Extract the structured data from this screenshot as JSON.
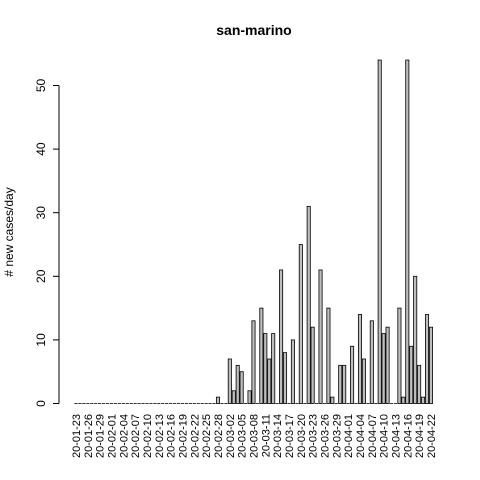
{
  "chart_data": {
    "type": "bar",
    "title": "san-marino",
    "xlabel": "",
    "ylabel": "# new cases/day",
    "ylim": [
      0,
      55
    ],
    "yticks": [
      0,
      10,
      20,
      30,
      40,
      50
    ],
    "dates": [
      "20-01-23",
      "20-01-24",
      "20-01-25",
      "20-01-26",
      "20-01-27",
      "20-01-28",
      "20-01-29",
      "20-01-30",
      "20-01-31",
      "20-02-01",
      "20-02-02",
      "20-02-03",
      "20-02-04",
      "20-02-05",
      "20-02-06",
      "20-02-07",
      "20-02-08",
      "20-02-09",
      "20-02-10",
      "20-02-11",
      "20-02-12",
      "20-02-13",
      "20-02-14",
      "20-02-15",
      "20-02-16",
      "20-02-17",
      "20-02-18",
      "20-02-19",
      "20-02-20",
      "20-02-21",
      "20-02-22",
      "20-02-23",
      "20-02-24",
      "20-02-25",
      "20-02-26",
      "20-02-27",
      "20-02-28",
      "20-02-29",
      "20-03-01",
      "20-03-02",
      "20-03-03",
      "20-03-04",
      "20-03-05",
      "20-03-06",
      "20-03-07",
      "20-03-08",
      "20-03-09",
      "20-03-10",
      "20-03-11",
      "20-03-12",
      "20-03-13",
      "20-03-14",
      "20-03-15",
      "20-03-16",
      "20-03-17",
      "20-03-18",
      "20-03-19",
      "20-03-20",
      "20-03-21",
      "20-03-22",
      "20-03-23",
      "20-03-24",
      "20-03-25",
      "20-03-26",
      "20-03-27",
      "20-03-28",
      "20-03-29",
      "20-03-30",
      "20-03-31",
      "20-04-01",
      "20-04-02",
      "20-04-03",
      "20-04-04",
      "20-04-05",
      "20-04-06",
      "20-04-07",
      "20-04-08",
      "20-04-09",
      "20-04-10",
      "20-04-11",
      "20-04-12",
      "20-04-13",
      "20-04-14",
      "20-04-15",
      "20-04-16",
      "20-04-17",
      "20-04-18",
      "20-04-19",
      "20-04-20",
      "20-04-21",
      "20-04-22"
    ],
    "values": [
      0,
      0,
      0,
      0,
      0,
      0,
      0,
      0,
      0,
      0,
      0,
      0,
      0,
      0,
      0,
      0,
      0,
      0,
      0,
      0,
      0,
      0,
      0,
      0,
      0,
      0,
      0,
      0,
      0,
      0,
      0,
      0,
      0,
      0,
      0,
      0,
      1,
      0,
      0,
      7,
      2,
      6,
      5,
      0,
      2,
      13,
      0,
      15,
      11,
      7,
      11,
      0,
      21,
      8,
      0,
      10,
      0,
      25,
      0,
      31,
      12,
      0,
      21,
      0,
      15,
      1,
      0,
      6,
      6,
      0,
      9,
      0,
      14,
      7,
      0,
      13,
      0,
      54,
      11,
      12,
      0,
      0,
      15,
      1,
      54,
      9,
      20,
      6,
      1,
      14,
      12
    ],
    "tick_labels": [
      "20-01-23",
      "20-01-26",
      "20-01-29",
      "20-02-01",
      "20-02-04",
      "20-02-07",
      "20-02-10",
      "20-02-13",
      "20-02-16",
      "20-02-19",
      "20-02-22",
      "20-02-25",
      "20-02-28",
      "20-03-02",
      "20-03-05",
      "20-03-08",
      "20-03-11",
      "20-03-14",
      "20-03-17",
      "20-03-20",
      "20-03-23",
      "20-03-26",
      "20-03-29",
      "20-04-01",
      "20-04-04",
      "20-04-07",
      "20-04-10",
      "20-04-13",
      "20-04-16",
      "20-04-19",
      "20-04-22"
    ]
  }
}
